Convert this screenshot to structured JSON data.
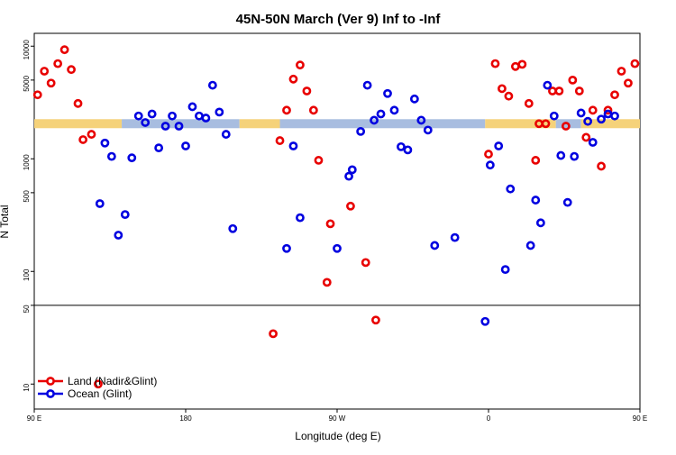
{
  "chart_data": {
    "type": "scatter",
    "title": "45N-50N March (Ver 9)   Inf to -Inf",
    "xlabel": "Longitude (deg E)",
    "ylabel": "N Total",
    "xlim": [
      90,
      450
    ],
    "ylim_log": [
      6,
      13000
    ],
    "y_scale": "log",
    "x_ticks": [
      {
        "value": 90,
        "label": "90 E"
      },
      {
        "value": 180,
        "label": "180"
      },
      {
        "value": 270,
        "label": "90 W"
      },
      {
        "value": 360,
        "label": "0"
      },
      {
        "value": 450,
        "label": "90 E"
      },
      {
        "value": 540,
        "label": "180"
      }
    ],
    "y_ticks": [
      {
        "value": 10,
        "label": "10"
      },
      {
        "value": 50,
        "label": "50"
      },
      {
        "value": 100,
        "label": "100"
      },
      {
        "value": 500,
        "label": "500"
      },
      {
        "value": 1000,
        "label": "1000"
      },
      {
        "value": 5000,
        "label": "5000"
      },
      {
        "value": 10000,
        "label": "10000"
      }
    ],
    "reference_line_y": 50,
    "land_band": {
      "y": 2050,
      "land_color": "#f5d27a",
      "ocean_color": "#a8bde0",
      "segments": [
        {
          "type": "land",
          "x0": 90,
          "x1": 142
        },
        {
          "type": "ocean",
          "x0": 142,
          "x1": 212
        },
        {
          "type": "land",
          "x0": 212,
          "x1": 236
        },
        {
          "type": "ocean",
          "x0": 236,
          "x1": 358
        },
        {
          "type": "land",
          "x0": 358,
          "x1": 400
        },
        {
          "type": "ocean",
          "x0": 400,
          "x1": 415
        },
        {
          "type": "land",
          "x0": 415,
          "x1": 513
        },
        {
          "type": "ocean",
          "x0": 513,
          "x1": 540
        }
      ]
    },
    "series": [
      {
        "name": "Land (Nadir&Glint)",
        "color": "#e80000",
        "points": [
          [
            92,
            3700
          ],
          [
            96,
            6000
          ],
          [
            100,
            4700
          ],
          [
            104,
            7000
          ],
          [
            108,
            9300
          ],
          [
            112,
            6200
          ],
          [
            116,
            3100
          ],
          [
            119,
            1480
          ],
          [
            124,
            1650
          ],
          [
            128,
            10
          ],
          [
            232,
            28
          ],
          [
            236,
            1450
          ],
          [
            240,
            2700
          ],
          [
            244,
            5100
          ],
          [
            248,
            6800
          ],
          [
            252,
            4000
          ],
          [
            256,
            2700
          ],
          [
            259,
            970
          ],
          [
            264,
            80
          ],
          [
            266,
            265
          ],
          [
            278,
            380
          ],
          [
            287,
            120
          ],
          [
            293,
            37
          ],
          [
            360,
            1100
          ],
          [
            364,
            7000
          ],
          [
            368,
            4200
          ],
          [
            372,
            3600
          ],
          [
            376,
            6600
          ],
          [
            380,
            6900
          ],
          [
            384,
            3100
          ],
          [
            388,
            970
          ],
          [
            390,
            2050
          ],
          [
            394,
            2050
          ],
          [
            398,
            4000
          ],
          [
            402,
            4000
          ],
          [
            406,
            1950
          ],
          [
            410,
            5000
          ],
          [
            414,
            4000
          ],
          [
            418,
            1550
          ],
          [
            422,
            2700
          ],
          [
            427,
            860
          ],
          [
            431,
            2700
          ],
          [
            435,
            3700
          ],
          [
            439,
            6000
          ],
          [
            443,
            4700
          ],
          [
            447,
            7000
          ],
          [
            451,
            9300
          ],
          [
            455,
            6200
          ],
          [
            459,
            3100
          ],
          [
            462,
            1480
          ],
          [
            467,
            1650
          ],
          [
            470,
            10
          ]
        ]
      },
      {
        "name": "Ocean (Glint)",
        "color": "#0000e0",
        "points": [
          [
            129,
            400
          ],
          [
            132,
            1380
          ],
          [
            136,
            1050
          ],
          [
            140,
            210
          ],
          [
            144,
            320
          ],
          [
            148,
            1020
          ],
          [
            152,
            2400
          ],
          [
            156,
            2100
          ],
          [
            160,
            2500
          ],
          [
            164,
            1250
          ],
          [
            168,
            1950
          ],
          [
            172,
            2400
          ],
          [
            176,
            1950
          ],
          [
            180,
            1300
          ],
          [
            184,
            2900
          ],
          [
            188,
            2400
          ],
          [
            192,
            2300
          ],
          [
            196,
            4500
          ],
          [
            200,
            2600
          ],
          [
            204,
            1650
          ],
          [
            208,
            240
          ],
          [
            240,
            160
          ],
          [
            244,
            1300
          ],
          [
            248,
            300
          ],
          [
            270,
            160
          ],
          [
            277,
            700
          ],
          [
            279,
            800
          ],
          [
            284,
            1750
          ],
          [
            288,
            4500
          ],
          [
            292,
            2200
          ],
          [
            296,
            2500
          ],
          [
            300,
            3800
          ],
          [
            304,
            2700
          ],
          [
            308,
            1280
          ],
          [
            312,
            1200
          ],
          [
            316,
            3400
          ],
          [
            320,
            2200
          ],
          [
            324,
            1800
          ],
          [
            328,
            170
          ],
          [
            340,
            200
          ],
          [
            358,
            36
          ],
          [
            361,
            880
          ],
          [
            366,
            1300
          ],
          [
            370,
            104
          ],
          [
            373,
            540
          ],
          [
            385,
            170
          ],
          [
            388,
            430
          ],
          [
            391,
            270
          ],
          [
            395,
            4500
          ],
          [
            399,
            2400
          ],
          [
            403,
            1070
          ],
          [
            407,
            410
          ],
          [
            411,
            1050
          ],
          [
            415,
            2550
          ],
          [
            419,
            2150
          ],
          [
            422,
            1400
          ],
          [
            427,
            2250
          ],
          [
            431,
            2500
          ],
          [
            435,
            2400
          ]
        ]
      }
    ],
    "legend": {
      "placement": "bottom-left",
      "items": [
        {
          "label": "Land (Nadir&Glint)",
          "color": "#e80000"
        },
        {
          "label": "Ocean (Glint)",
          "color": "#0000e0"
        }
      ]
    }
  }
}
